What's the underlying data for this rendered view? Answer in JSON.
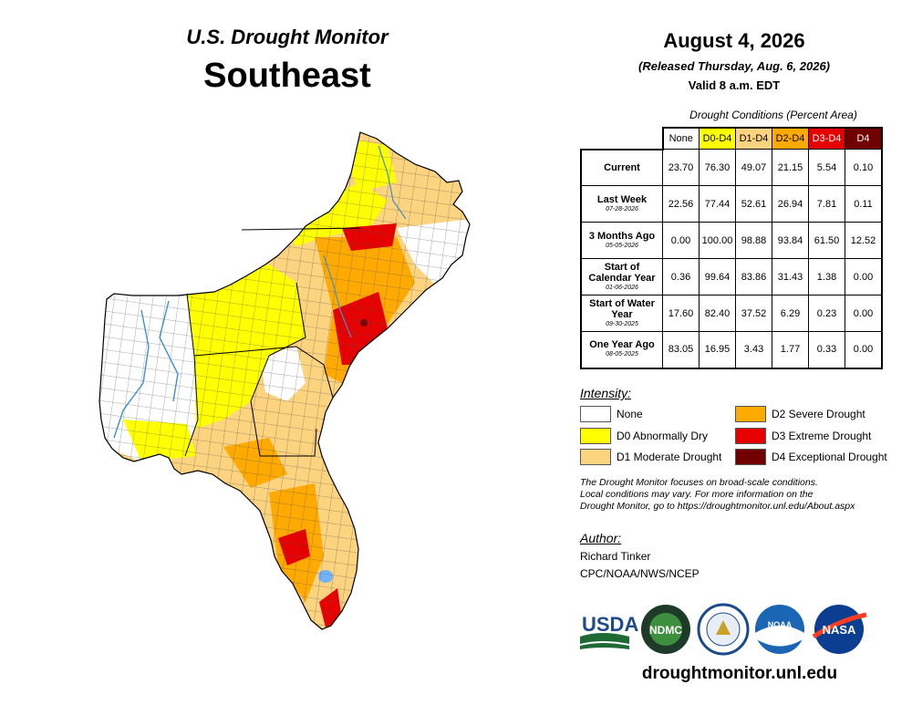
{
  "header": {
    "monitor_title": "U.S. Drought Monitor",
    "region": "Southeast",
    "date": "August 4, 2026",
    "released": "(Released Thursday, Aug. 6, 2026)",
    "valid": "Valid 8 a.m. EDT"
  },
  "table": {
    "caption": "Drought Conditions (Percent Area)",
    "columns": [
      {
        "label": "None",
        "color": "#ffffff",
        "text_color": "#000000"
      },
      {
        "label": "D0-D4",
        "color": "#ffff00",
        "text_color": "#000000"
      },
      {
        "label": "D1-D4",
        "color": "#fcd37f",
        "text_color": "#000000"
      },
      {
        "label": "D2-D4",
        "color": "#ffaa00",
        "text_color": "#000000"
      },
      {
        "label": "D3-D4",
        "color": "#e60000",
        "text_color": "#ffffff"
      },
      {
        "label": "D4",
        "color": "#730000",
        "text_color": "#ffffff"
      }
    ],
    "rows": [
      {
        "label": "Current",
        "sub": "",
        "values": [
          "23.70",
          "76.30",
          "49.07",
          "21.15",
          "5.54",
          "0.10"
        ]
      },
      {
        "label": "Last Week",
        "sub": "07-28-2026",
        "values": [
          "22.56",
          "77.44",
          "52.61",
          "26.94",
          "7.81",
          "0.11"
        ]
      },
      {
        "label": "3 Months Ago",
        "sub": "05-05-2026",
        "values": [
          "0.00",
          "100.00",
          "98.88",
          "93.84",
          "61.50",
          "12.52"
        ]
      },
      {
        "label": "Start of Calendar Year",
        "sub": "01-06-2026",
        "values": [
          "0.36",
          "99.64",
          "83.86",
          "31.43",
          "1.38",
          "0.00"
        ]
      },
      {
        "label": "Start of Water Year",
        "sub": "09-30-2025",
        "values": [
          "17.60",
          "82.40",
          "37.52",
          "6.29",
          "0.23",
          "0.00"
        ]
      },
      {
        "label": "One Year Ago",
        "sub": "08-05-2025",
        "values": [
          "83.05",
          "16.95",
          "3.43",
          "1.77",
          "0.33",
          "0.00"
        ]
      }
    ]
  },
  "legend": {
    "title": "Intensity:",
    "items": [
      {
        "label": "None",
        "color": "#ffffff"
      },
      {
        "label": "D0 Abnormally Dry",
        "color": "#ffff00"
      },
      {
        "label": "D1 Moderate Drought",
        "color": "#fcd37f"
      },
      {
        "label": "D2 Severe Drought",
        "color": "#ffaa00"
      },
      {
        "label": "D3 Extreme Drought",
        "color": "#e60000"
      },
      {
        "label": "D4 Exceptional Drought",
        "color": "#730000"
      }
    ]
  },
  "note": {
    "line1": "The Drought Monitor focuses on broad-scale conditions.",
    "line2": "Local conditions may vary. For more information on the",
    "line3": "Drought Monitor, go to https://droughtmonitor.unl.edu/About.aspx"
  },
  "author": {
    "label": "Author:",
    "name": "Richard Tinker",
    "org": "CPC/NOAA/NWS/NCEP"
  },
  "logos": [
    {
      "name": "USDA",
      "icon": "usda-logo"
    },
    {
      "name": "NDMC",
      "icon": "ndmc-logo"
    },
    {
      "name": "",
      "icon": "commerce-seal"
    },
    {
      "name": "NOAA",
      "icon": "noaa-logo"
    },
    {
      "name": "NASA",
      "icon": "nasa-logo"
    }
  ],
  "url": "droughtmonitor.unl.edu"
}
